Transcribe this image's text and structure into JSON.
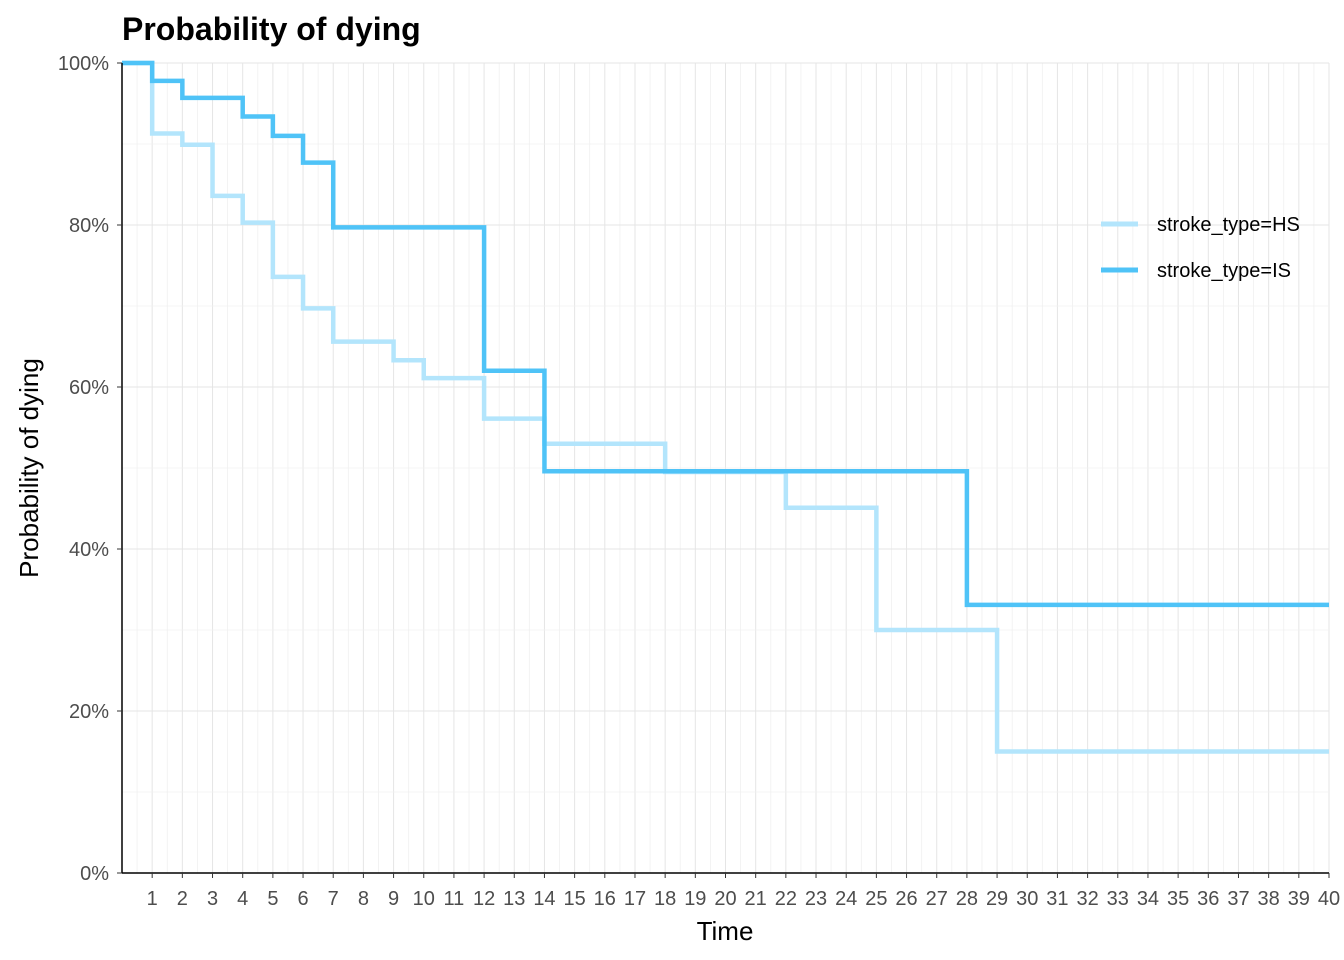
{
  "chart_data": {
    "type": "line",
    "step": true,
    "title": "Probability of dying",
    "xlabel": "Time",
    "ylabel": "Probability of dying",
    "xlim": [
      0,
      40
    ],
    "ylim": [
      0,
      1
    ],
    "x_ticks": [
      "1",
      "2",
      "3",
      "4",
      "5",
      "6",
      "7",
      "8",
      "9",
      "10",
      "11",
      "12",
      "13",
      "14",
      "15",
      "16",
      "17",
      "18",
      "19",
      "20",
      "21",
      "22",
      "23",
      "24",
      "25",
      "26",
      "27",
      "28",
      "29",
      "30",
      "31",
      "32",
      "33",
      "34",
      "35",
      "36",
      "37",
      "38",
      "39",
      "40"
    ],
    "y_ticks": [
      {
        "value": 0,
        "label": "0%"
      },
      {
        "value": 0.2,
        "label": "20%"
      },
      {
        "value": 0.4,
        "label": "40%"
      },
      {
        "value": 0.6,
        "label": "60%"
      },
      {
        "value": 0.8,
        "label": "80%"
      },
      {
        "value": 1.0,
        "label": "100%"
      }
    ],
    "grid": true,
    "legend_position": "right",
    "series": [
      {
        "name": "stroke_type=HS",
        "color": "#b3e5fc",
        "points": [
          [
            0,
            1.0
          ],
          [
            1,
            0.913
          ],
          [
            2,
            0.899
          ],
          [
            3,
            0.836
          ],
          [
            4,
            0.803
          ],
          [
            5,
            0.736
          ],
          [
            6,
            0.697
          ],
          [
            7,
            0.656
          ],
          [
            9,
            0.633
          ],
          [
            10,
            0.611
          ],
          [
            12,
            0.561
          ],
          [
            14,
            0.53
          ],
          [
            18,
            0.495
          ],
          [
            22,
            0.451
          ],
          [
            25,
            0.3
          ],
          [
            29,
            0.15
          ],
          [
            40,
            0.15
          ]
        ]
      },
      {
        "name": "stroke_type=IS",
        "color": "#4fc3f7",
        "points": [
          [
            0,
            1.0
          ],
          [
            1,
            0.978
          ],
          [
            2,
            0.957
          ],
          [
            4,
            0.934
          ],
          [
            5,
            0.91
          ],
          [
            6,
            0.877
          ],
          [
            7,
            0.797
          ],
          [
            12,
            0.62
          ],
          [
            14,
            0.496
          ],
          [
            28,
            0.331
          ],
          [
            40,
            0.331
          ]
        ]
      }
    ]
  }
}
